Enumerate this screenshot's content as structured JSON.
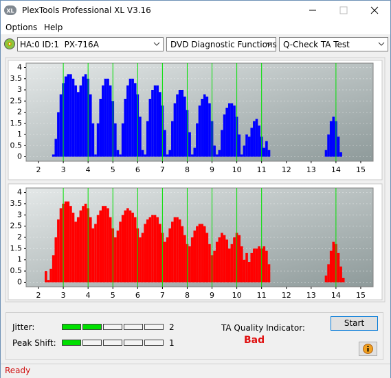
{
  "window": {
    "icon": "XL",
    "title": "PlexTools Professional XL V3.16"
  },
  "menu": [
    "Options",
    "Help"
  ],
  "toolbar": {
    "drive": "HA:0 ID:1  PX-716A",
    "function": "DVD Diagnostic Functions",
    "test": "Q-Check TA Test"
  },
  "chart_data": [
    {
      "type": "bar",
      "color": "#0000ff",
      "x": [
        2.6,
        2.7,
        2.8,
        2.9,
        3.0,
        3.1,
        3.2,
        3.3,
        3.4,
        3.5,
        3.6,
        3.7,
        3.8,
        3.9,
        4.0,
        4.1,
        4.2,
        4.3,
        4.4,
        4.5,
        4.6,
        4.7,
        4.8,
        4.9,
        5.0,
        5.1,
        5.2,
        5.3,
        5.4,
        5.5,
        5.6,
        5.7,
        5.8,
        5.9,
        6.0,
        6.1,
        6.2,
        6.3,
        6.4,
        6.5,
        6.6,
        6.7,
        6.8,
        6.9,
        7.0,
        7.1,
        7.2,
        7.3,
        7.4,
        7.5,
        7.6,
        7.7,
        7.8,
        7.9,
        8.0,
        8.1,
        8.2,
        8.3,
        8.4,
        8.5,
        8.6,
        8.7,
        8.8,
        8.9,
        9.0,
        9.1,
        9.2,
        9.3,
        9.4,
        9.5,
        9.6,
        9.7,
        9.8,
        9.9,
        10.0,
        10.1,
        10.2,
        10.3,
        10.4,
        10.5,
        10.6,
        10.7,
        10.8,
        10.9,
        11.0,
        11.1,
        11.2,
        11.3,
        13.6,
        13.7,
        13.8,
        13.9,
        14.0,
        14.1,
        14.2
      ],
      "values": [
        0.1,
        0.8,
        2.0,
        2.8,
        3.3,
        3.6,
        3.7,
        3.7,
        3.5,
        3.2,
        2.9,
        3.2,
        3.6,
        3.7,
        3.5,
        2.8,
        1.5,
        0.1,
        1.5,
        2.6,
        3.2,
        3.5,
        3.5,
        3.2,
        2.5,
        1.5,
        0.3,
        0.1,
        1.5,
        2.6,
        3.2,
        3.5,
        3.5,
        3.3,
        2.8,
        1.8,
        0.3,
        0.1,
        1.6,
        2.6,
        3.0,
        3.2,
        3.2,
        2.9,
        2.3,
        1.2,
        0.1,
        0.3,
        1.6,
        2.4,
        2.8,
        3.0,
        3.0,
        2.7,
        2.1,
        1.1,
        0.1,
        0.4,
        1.5,
        2.3,
        2.6,
        2.8,
        2.7,
        2.4,
        1.6,
        0.5,
        0.1,
        0.3,
        1.2,
        1.9,
        2.2,
        2.4,
        2.4,
        2.3,
        1.8,
        1.0,
        0.1,
        0.5,
        1.0,
        0.9,
        1.3,
        1.6,
        1.7,
        1.4,
        0.9,
        0.4,
        0.7,
        0.3,
        0.3,
        1.0,
        1.6,
        1.8,
        1.6,
        0.9,
        0.2
      ],
      "xlim": [
        1.5,
        15.5
      ],
      "ylim": [
        -0.2,
        4.2
      ],
      "xticks": [
        2,
        3,
        4,
        5,
        6,
        7,
        8,
        9,
        10,
        11,
        12,
        13,
        14,
        15
      ],
      "yticks": [
        0,
        0.5,
        1,
        1.5,
        2,
        2.5,
        3,
        3.5,
        4
      ],
      "marker_lines": [
        3,
        4,
        5,
        6,
        7,
        8,
        9,
        10,
        11,
        14
      ],
      "marker_color": "#00e000",
      "grid": true
    },
    {
      "type": "bar",
      "color": "#ff0000",
      "x": [
        2.3,
        2.4,
        2.5,
        2.6,
        2.7,
        2.8,
        2.9,
        3.0,
        3.1,
        3.2,
        3.3,
        3.4,
        3.5,
        3.6,
        3.7,
        3.8,
        3.9,
        4.0,
        4.1,
        4.2,
        4.3,
        4.4,
        4.5,
        4.6,
        4.7,
        4.8,
        4.9,
        5.0,
        5.1,
        5.2,
        5.3,
        5.4,
        5.5,
        5.6,
        5.7,
        5.8,
        5.9,
        6.0,
        6.1,
        6.2,
        6.3,
        6.4,
        6.5,
        6.6,
        6.7,
        6.8,
        6.9,
        7.0,
        7.1,
        7.2,
        7.3,
        7.4,
        7.5,
        7.6,
        7.7,
        7.8,
        7.9,
        8.0,
        8.1,
        8.2,
        8.3,
        8.4,
        8.5,
        8.6,
        8.7,
        8.8,
        8.9,
        9.0,
        9.1,
        9.2,
        9.3,
        9.4,
        9.5,
        9.6,
        9.7,
        9.8,
        9.9,
        10.0,
        10.1,
        10.2,
        10.3,
        10.4,
        10.5,
        10.6,
        10.7,
        10.8,
        10.9,
        11.0,
        11.1,
        11.2,
        11.3,
        13.6,
        13.7,
        13.8,
        13.9,
        14.0,
        14.1,
        14.2,
        14.3
      ],
      "values": [
        0.5,
        0.1,
        0.6,
        1.2,
        2.0,
        2.8,
        3.3,
        3.5,
        3.6,
        3.6,
        3.4,
        3.1,
        2.7,
        2.9,
        3.2,
        3.4,
        3.5,
        3.3,
        2.9,
        2.4,
        2.6,
        3.0,
        3.2,
        3.4,
        3.4,
        3.3,
        2.9,
        2.4,
        2.0,
        2.3,
        2.7,
        3.0,
        3.2,
        3.3,
        3.2,
        3.1,
        2.9,
        2.4,
        2.0,
        2.2,
        2.6,
        2.8,
        2.9,
        3.0,
        3.0,
        2.9,
        2.6,
        2.2,
        1.8,
        2.0,
        2.4,
        2.7,
        2.9,
        2.9,
        2.8,
        2.5,
        2.1,
        1.7,
        1.6,
        2.0,
        2.3,
        2.5,
        2.6,
        2.6,
        2.5,
        2.2,
        1.7,
        1.2,
        1.4,
        1.8,
        2.0,
        2.2,
        2.1,
        1.9,
        1.5,
        1.7,
        2.0,
        2.2,
        2.1,
        1.6,
        1.0,
        1.3,
        0.9,
        1.3,
        1.5,
        1.5,
        1.6,
        1.5,
        1.6,
        1.4,
        0.8,
        0.3,
        0.8,
        1.4,
        1.8,
        1.7,
        1.3,
        0.7,
        0.2
      ],
      "xlim": [
        1.5,
        15.5
      ],
      "ylim": [
        -0.2,
        4.2
      ],
      "xticks": [
        2,
        3,
        4,
        5,
        6,
        7,
        8,
        9,
        10,
        11,
        12,
        13,
        14,
        15
      ],
      "yticks": [
        0,
        0.5,
        1,
        1.5,
        2,
        2.5,
        3,
        3.5,
        4
      ],
      "marker_lines": [
        3,
        4,
        5,
        6,
        7,
        8,
        9,
        10,
        11,
        14
      ],
      "marker_color": "#00e000",
      "grid": true
    }
  ],
  "results": {
    "jitter": {
      "label": "Jitter:",
      "value": 2,
      "segments": 5,
      "color": "#00e000"
    },
    "peak_shift": {
      "label": "Peak Shift:",
      "value": 1,
      "segments": 5,
      "color": "#00e000"
    },
    "ta_quality": {
      "label": "TA Quality Indicator:",
      "value": "Bad"
    }
  },
  "buttons": {
    "start": "Start"
  },
  "status": "Ready"
}
